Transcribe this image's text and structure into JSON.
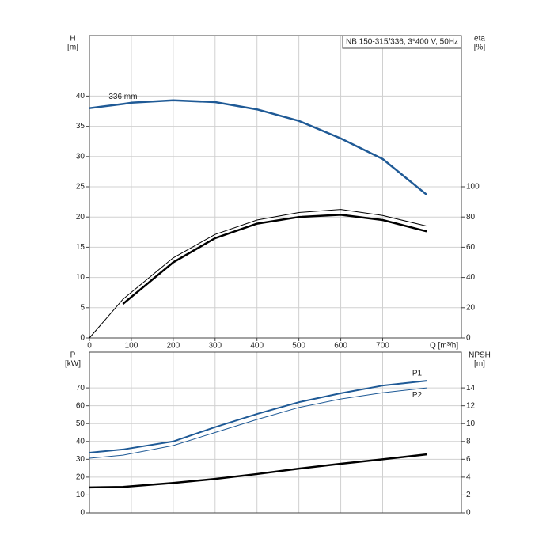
{
  "chart_data": [
    {
      "type": "line",
      "title": "NB 150-315/336, 3*400 V, 50Hz",
      "ylabel": [
        "H",
        "[m]"
      ],
      "y2label": [
        "eta",
        "[%]"
      ],
      "xlabel": "Q [m³/h]",
      "xlim": [
        0,
        888
      ],
      "xticks": [
        0,
        100,
        200,
        300,
        400,
        500,
        600,
        700
      ],
      "ylim": [
        0,
        50
      ],
      "yticks": [
        0,
        5,
        10,
        15,
        20,
        25,
        30,
        35,
        40
      ],
      "y2lim": [
        0,
        200
      ],
      "y2ticks": [
        0,
        20,
        40,
        60,
        80,
        100
      ],
      "grid": true,
      "series": [
        {
          "name": "336 mm",
          "color": "#1f5a96",
          "linewidth": 2.5,
          "x": [
            0,
            80,
            100,
            200,
            300,
            400,
            500,
            600,
            700,
            805
          ],
          "values": [
            38,
            38.7,
            38.9,
            39.3,
            39.0,
            37.8,
            35.9,
            33.0,
            29.6,
            23.7
          ]
        },
        {
          "color": "#000000",
          "linewidth": 1,
          "axis": "y2",
          "x": [
            0,
            80,
            200,
            300,
            400,
            500,
            600,
            700,
            805
          ],
          "values": [
            0,
            25.6,
            53,
            68.5,
            78,
            83,
            85,
            81,
            74
          ]
        },
        {
          "color": "#000000",
          "linewidth": 2.5,
          "axis": "y2",
          "x": [
            80,
            200,
            300,
            400,
            500,
            600,
            700,
            805
          ],
          "values": [
            22.5,
            50,
            66,
            75.6,
            80,
            81.5,
            78,
            70.5
          ]
        }
      ]
    },
    {
      "type": "line",
      "ylabel": [
        "P",
        "[kW]"
      ],
      "y2label": [
        "NPSH",
        "[m]"
      ],
      "xlim": [
        0,
        888
      ],
      "ylim": [
        0,
        90
      ],
      "yticks": [
        0,
        10,
        20,
        30,
        40,
        50,
        60,
        70
      ],
      "y2lim": [
        0,
        18
      ],
      "y2ticks": [
        0,
        2,
        4,
        6,
        8,
        10,
        12,
        14
      ],
      "grid": true,
      "series": [
        {
          "name": "P1",
          "color": "#1f5a96",
          "linewidth": 2,
          "x": [
            0,
            80,
            200,
            300,
            400,
            500,
            600,
            700,
            805
          ],
          "values": [
            33.7,
            35.5,
            40,
            48,
            55.4,
            62,
            67,
            71.3,
            74
          ]
        },
        {
          "name": "P2",
          "color": "#1f5a96",
          "linewidth": 1,
          "x": [
            0,
            80,
            200,
            300,
            400,
            500,
            600,
            700,
            805
          ],
          "values": [
            30.6,
            32.3,
            37.7,
            45,
            52.3,
            59,
            63.8,
            67.3,
            70
          ]
        },
        {
          "color": "#000000",
          "linewidth": 2.5,
          "axis": "y2",
          "x": [
            0,
            80,
            200,
            300,
            400,
            500,
            600,
            700,
            805
          ],
          "values": [
            2.85,
            2.9,
            3.35,
            3.8,
            4.35,
            4.95,
            5.5,
            6.0,
            6.55
          ]
        }
      ]
    }
  ]
}
